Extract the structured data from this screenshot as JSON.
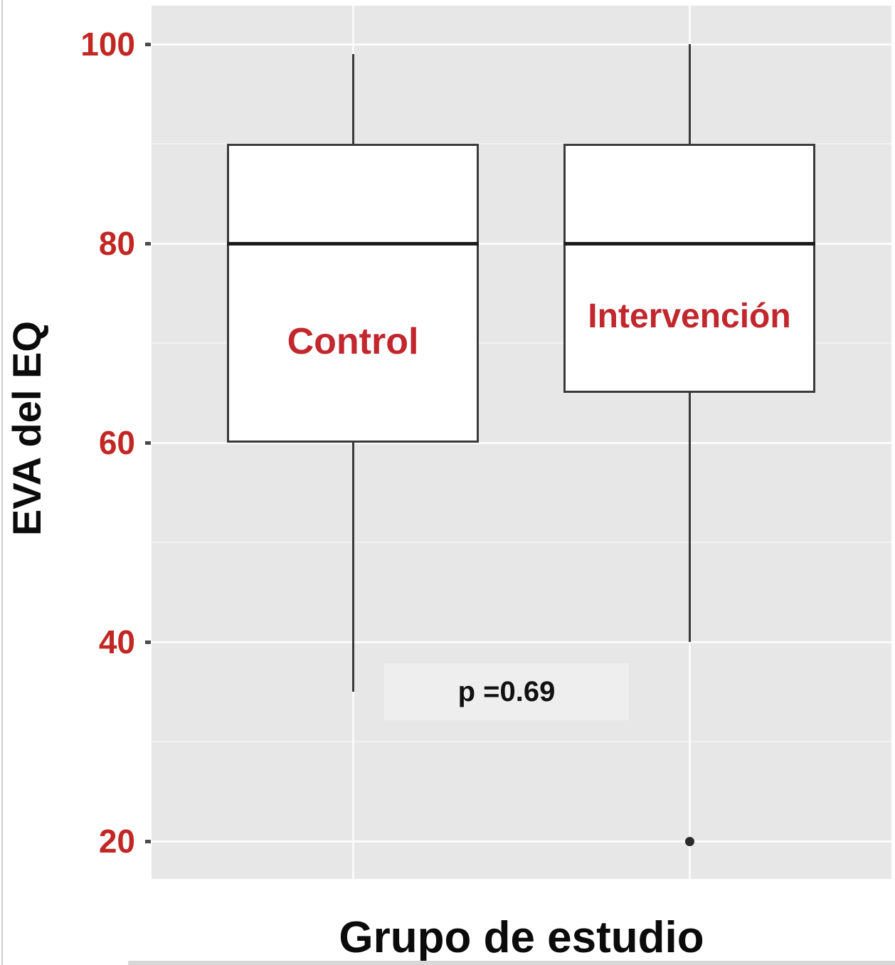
{
  "figure": {
    "y_axis_title": "EVA del EQ",
    "x_axis_title": "Grupo de estudio",
    "p_value_label": "p =0.69",
    "colors": {
      "tick_label_red": "#c12723",
      "group_label_red": "#c1272d",
      "panel_background": "#e8e7e7",
      "gridline": "#fcfcfc",
      "box_stroke": "#3a3a3a",
      "median": "#1c1c1c",
      "outlier": "#2b2b2b"
    }
  },
  "chart_data": {
    "type": "boxplot",
    "title": "",
    "xlabel": "Grupo de estudio",
    "ylabel": "EVA del EQ",
    "ylim": [
      16,
      104
    ],
    "yticks": [
      100,
      80,
      60,
      40,
      20
    ],
    "minor_yticks": [
      90,
      70,
      50,
      30
    ],
    "grid": "on",
    "categories": [
      "Control",
      "Intervención"
    ],
    "series": [
      {
        "name": "Control",
        "whisker_low": 35,
        "q1": 60,
        "median": 80,
        "q3": 90,
        "whisker_high": 99,
        "outliers": []
      },
      {
        "name": "Intervención",
        "whisker_low": 40,
        "q1": 65,
        "median": 80,
        "q3": 90,
        "whisker_high": 100,
        "outliers": [
          20
        ]
      }
    ],
    "annotation": {
      "text": "p =0.69",
      "position": "between groups, at y ≈ 35"
    }
  }
}
